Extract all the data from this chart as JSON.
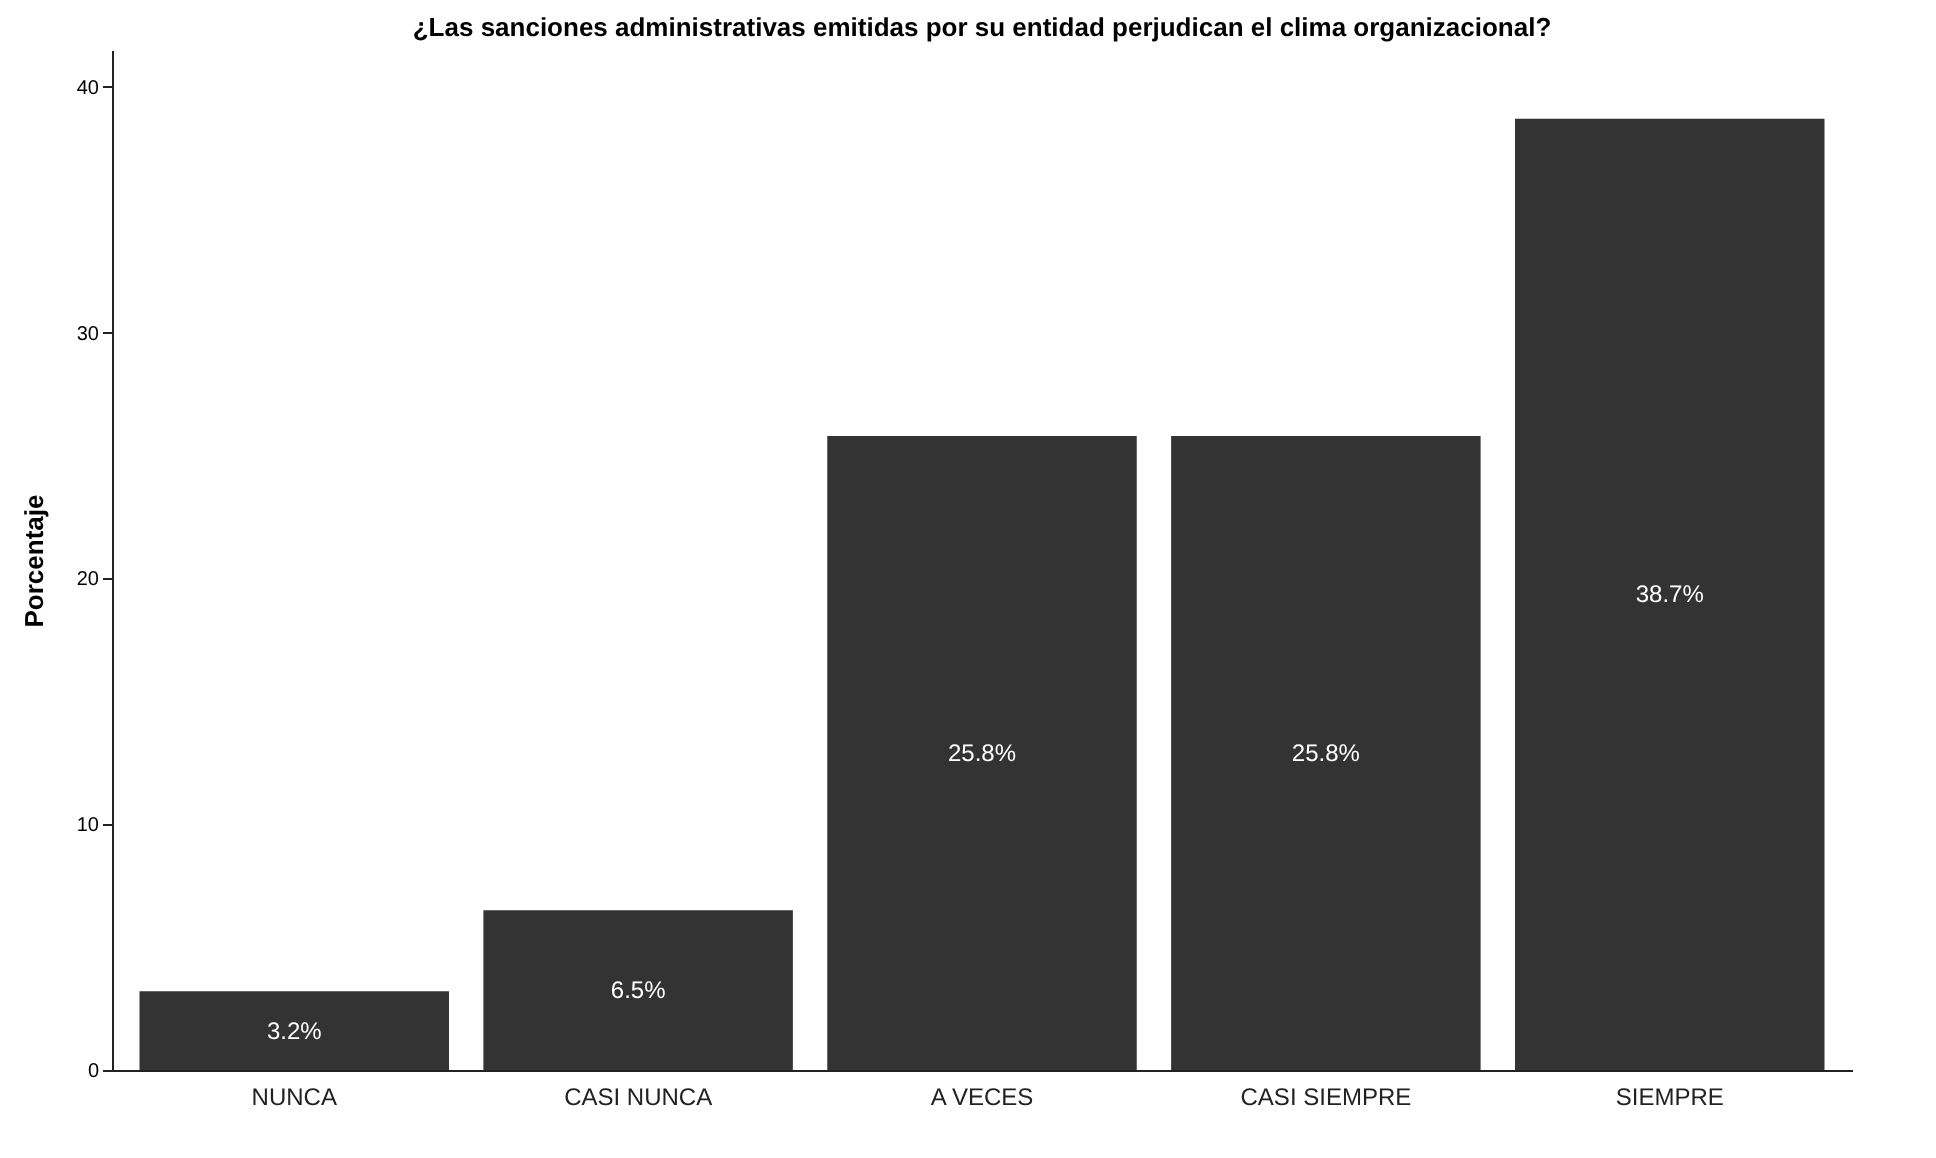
{
  "chart_data": {
    "type": "bar",
    "title": "¿Las sanciones administrativas emitidas por su entidad perjudican el clima organizacional?",
    "ylabel": "Porcentaje",
    "categories": [
      "NUNCA",
      "CASI NUNCA",
      "A VECES",
      "CASI SIEMPRE",
      "SIEMPRE"
    ],
    "values": [
      3.2,
      6.5,
      25.8,
      25.8,
      38.7
    ],
    "value_labels": [
      "3.2%",
      "6.5%",
      "25.8%",
      "25.8%",
      "38.7%"
    ],
    "color": "#333333",
    "ylim": [
      0,
      41.5
    ],
    "yticks": [
      0,
      10,
      20,
      30,
      40
    ],
    "grid": false
  }
}
